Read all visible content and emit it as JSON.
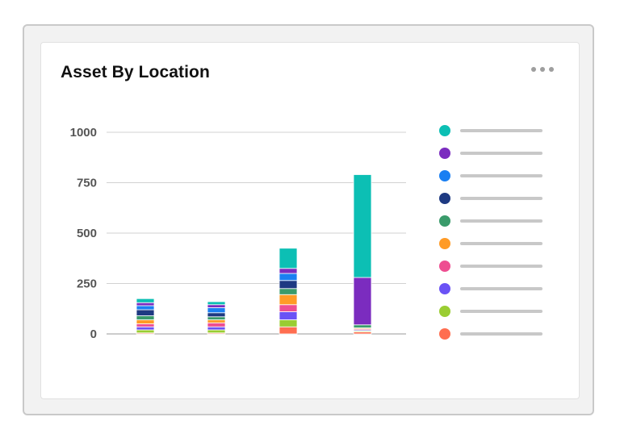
{
  "card": {
    "title": "Asset By Location",
    "menu_icon": "more-horizontal-icon"
  },
  "chart_data": {
    "type": "bar",
    "stacked": true,
    "title": "Asset By Location",
    "xlabel": "",
    "ylabel": "",
    "ylim": [
      0,
      1000
    ],
    "yticks": [
      0,
      250,
      500,
      750,
      1000
    ],
    "ytick_labels": [
      "0",
      "250",
      "500",
      "750",
      "1000"
    ],
    "grid": true,
    "legend_position": "right",
    "categories": [
      "",
      "",
      "",
      ""
    ],
    "series": [
      {
        "color": "#ff6e50",
        "values": [
          5,
          5,
          35,
          10
        ]
      },
      {
        "color": "#9acd32",
        "values": [
          15,
          15,
          35,
          5
        ]
      },
      {
        "color": "#6a52f5",
        "values": [
          15,
          15,
          40,
          5
        ]
      },
      {
        "color": "#ee4e91",
        "values": [
          15,
          20,
          35,
          5
        ]
      },
      {
        "color": "#ff9b26",
        "values": [
          20,
          15,
          50,
          5
        ]
      },
      {
        "color": "#3a9b6b",
        "values": [
          20,
          15,
          30,
          15
        ]
      },
      {
        "color": "#1e3a82",
        "values": [
          30,
          20,
          40,
          0
        ]
      },
      {
        "color": "#1a7ff2",
        "values": [
          20,
          25,
          35,
          0
        ]
      },
      {
        "color": "#7b2cbf",
        "values": [
          15,
          15,
          25,
          235
        ]
      },
      {
        "color": "#0cbfb4",
        "values": [
          20,
          15,
          100,
          510
        ]
      }
    ]
  },
  "legend": [
    {
      "color": "#0cbfb4"
    },
    {
      "color": "#7b2cbf"
    },
    {
      "color": "#1a7ff2"
    },
    {
      "color": "#1e3a82"
    },
    {
      "color": "#3a9b6b"
    },
    {
      "color": "#ff9b26"
    },
    {
      "color": "#ee4e91"
    },
    {
      "color": "#6a52f5"
    },
    {
      "color": "#9acd32"
    },
    {
      "color": "#ff6e50"
    }
  ]
}
